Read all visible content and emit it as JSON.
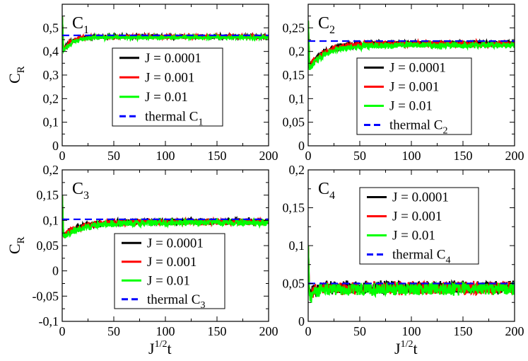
{
  "chart_data": [
    {
      "type": "line",
      "panel_label": "C",
      "panel_sub": "1",
      "ylabel": "C",
      "ylabel_sub": "R",
      "xlabel": "",
      "xlim": [
        0,
        200
      ],
      "ylim": [
        0,
        0.6
      ],
      "xticks": [
        0,
        50,
        100,
        150,
        200
      ],
      "xtick_labels": [
        "0",
        "50",
        "100",
        "150",
        "200"
      ],
      "yticks": [
        0,
        0.1,
        0.2,
        0.3,
        0.4,
        0.5
      ],
      "ytick_labels": [
        "0",
        "0,1",
        "0,2",
        "0,3",
        "0,4",
        "0,5"
      ],
      "thermal_value": 0.468,
      "series": [
        {
          "name": "J = 0.0001",
          "color": "#000000",
          "start": 0.41,
          "plateau": 0.463,
          "tau": 8,
          "noise": 0.004,
          "spike": 0.55,
          "ripple": 0.008
        },
        {
          "name": "J = 0.001",
          "color": "#ff0000",
          "start": 0.41,
          "plateau": 0.463,
          "tau": 8,
          "noise": 0.004,
          "spike": 0.55,
          "ripple": 0.008
        },
        {
          "name": "J = 0.01",
          "color": "#00ff00",
          "start": 0.4,
          "plateau": 0.46,
          "tau": 9,
          "noise": 0.004,
          "spike": 0.55,
          "ripple": 0.008
        }
      ],
      "legend": {
        "entries": [
          "J = 0.0001",
          "J = 0.001",
          "J = 0.01",
          "thermal C"
        ],
        "thermal_sub": "1",
        "thermal_color": "#0000ff",
        "placement": "center-right"
      }
    },
    {
      "type": "line",
      "panel_label": "C",
      "panel_sub": "2",
      "ylabel": "",
      "ylabel_sub": "",
      "xlabel": "",
      "xlim": [
        0,
        200
      ],
      "ylim": [
        0,
        0.3
      ],
      "xticks": [
        0,
        50,
        100,
        150,
        200
      ],
      "xtick_labels": [
        "0",
        "50",
        "100",
        "150",
        "200"
      ],
      "yticks": [
        0,
        0.05,
        0.1,
        0.15,
        0.2,
        0.25
      ],
      "ytick_labels": [
        "0",
        "0,05",
        "0,1",
        "0,15",
        "0,2",
        "0,25"
      ],
      "thermal_value": 0.222,
      "series": [
        {
          "name": "J = 0.0001",
          "color": "#000000",
          "start": 0.17,
          "plateau": 0.217,
          "tau": 15,
          "noise": 0.003,
          "spike": 0.265,
          "ripple": 0.006
        },
        {
          "name": "J = 0.001",
          "color": "#ff0000",
          "start": 0.17,
          "plateau": 0.216,
          "tau": 15,
          "noise": 0.003,
          "spike": 0.265,
          "ripple": 0.006
        },
        {
          "name": "J = 0.01",
          "color": "#00ff00",
          "start": 0.165,
          "plateau": 0.213,
          "tau": 17,
          "noise": 0.003,
          "spike": 0.265,
          "ripple": 0.006
        }
      ],
      "legend": {
        "entries": [
          "J = 0.0001",
          "J = 0.001",
          "J = 0.01",
          "thermal C"
        ],
        "thermal_sub": "2",
        "thermal_color": "#0000ff",
        "placement": "center-right"
      }
    },
    {
      "type": "line",
      "panel_label": "C",
      "panel_sub": "3",
      "ylabel": "C",
      "ylabel_sub": "R",
      "xlabel": "J",
      "xlabel_sup": "1/2",
      "xlabel_tail": "t",
      "xlim": [
        0,
        200
      ],
      "ylim": [
        -0.1,
        0.2
      ],
      "xticks": [
        0,
        50,
        100,
        150,
        200
      ],
      "xtick_labels": [
        "0",
        "50",
        "100",
        "150",
        "200"
      ],
      "yticks": [
        -0.1,
        -0.05,
        0,
        0.05,
        0.1,
        0.15,
        0.2
      ],
      "ytick_labels": [
        "-0,1",
        "-0,05",
        "0",
        "0,05",
        "0,1",
        "0,15",
        "0,2"
      ],
      "thermal_value": 0.102,
      "series": [
        {
          "name": "J = 0.0001",
          "color": "#000000",
          "start": 0.07,
          "plateau": 0.098,
          "tau": 18,
          "noise": 0.003,
          "spike": 0.15,
          "ripple": 0.006
        },
        {
          "name": "J = 0.001",
          "color": "#ff0000",
          "start": 0.07,
          "plateau": 0.097,
          "tau": 18,
          "noise": 0.003,
          "spike": 0.15,
          "ripple": 0.006
        },
        {
          "name": "J = 0.01",
          "color": "#00ff00",
          "start": 0.068,
          "plateau": 0.096,
          "tau": 20,
          "noise": 0.003,
          "spike": 0.15,
          "ripple": 0.006
        }
      ],
      "legend": {
        "entries": [
          "J = 0.0001",
          "J = 0.001",
          "J = 0.01",
          "thermal C"
        ],
        "thermal_sub": "3",
        "thermal_color": "#0000ff",
        "placement": "bottom-right"
      }
    },
    {
      "type": "line",
      "panel_label": "C",
      "panel_sub": "4",
      "ylabel": "",
      "ylabel_sub": "",
      "xlabel": "J",
      "xlabel_sup": "1/2",
      "xlabel_tail": "t",
      "xlim": [
        0,
        200
      ],
      "ylim": [
        0,
        0.2
      ],
      "xticks": [
        0,
        50,
        100,
        150,
        200
      ],
      "xtick_labels": [
        "0",
        "50",
        "100",
        "150",
        "200"
      ],
      "yticks": [
        0,
        0.05,
        0.1,
        0.15,
        0.2
      ],
      "ytick_labels": [
        "0",
        "0,05",
        "0,1",
        "0,15",
        "0,2"
      ],
      "thermal_value": 0.05,
      "series": [
        {
          "name": "J = 0.0001",
          "color": "#000000",
          "start": 0.035,
          "plateau": 0.045,
          "tau": 6,
          "noise": 0.003,
          "spike": 0.1,
          "ripple": 0.008
        },
        {
          "name": "J = 0.001",
          "color": "#ff0000",
          "start": 0.035,
          "plateau": 0.044,
          "tau": 6,
          "noise": 0.003,
          "spike": 0.1,
          "ripple": 0.008
        },
        {
          "name": "J = 0.01",
          "color": "#00ff00",
          "start": 0.03,
          "plateau": 0.043,
          "tau": 7,
          "noise": 0.003,
          "spike": 0.1,
          "ripple": 0.008
        }
      ],
      "legend": {
        "entries": [
          "J = 0.0001",
          "J = 0.001",
          "J = 0.01",
          "thermal C"
        ],
        "thermal_sub": "4",
        "thermal_color": "#0000ff",
        "placement": "top-center"
      }
    }
  ]
}
